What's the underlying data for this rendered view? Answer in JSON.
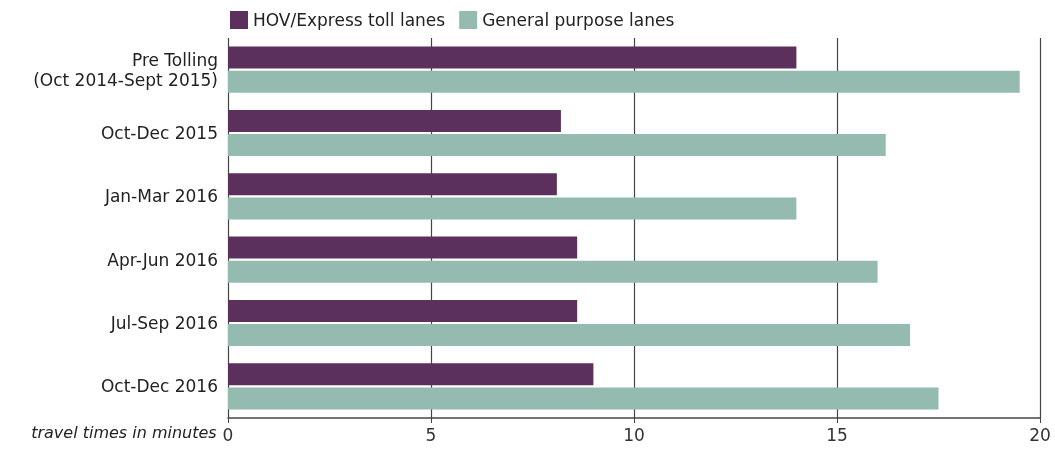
{
  "chart_data": {
    "type": "bar",
    "orientation": "horizontal",
    "xlabel": "travel times in minutes",
    "categories": [
      "Pre Tolling\n(Oct 2014-Sept 2015)",
      "Oct-Dec 2015",
      "Jan-Mar 2016",
      "Apr-Jun 2016",
      "Jul-Sep 2016",
      "Oct-Dec 2016"
    ],
    "series": [
      {
        "name": "HOV/Express toll lanes",
        "color": "#5b305c",
        "values": [
          14.0,
          8.2,
          8.1,
          8.6,
          8.6,
          9.0
        ]
      },
      {
        "name": "General purpose lanes",
        "color": "#95bab0",
        "values": [
          19.5,
          16.2,
          14.0,
          16.0,
          16.8,
          17.5
        ]
      }
    ],
    "xlim": [
      0,
      20
    ],
    "xticks": [
      0,
      5,
      10,
      15,
      20
    ],
    "grid": "x",
    "legend": "top"
  }
}
